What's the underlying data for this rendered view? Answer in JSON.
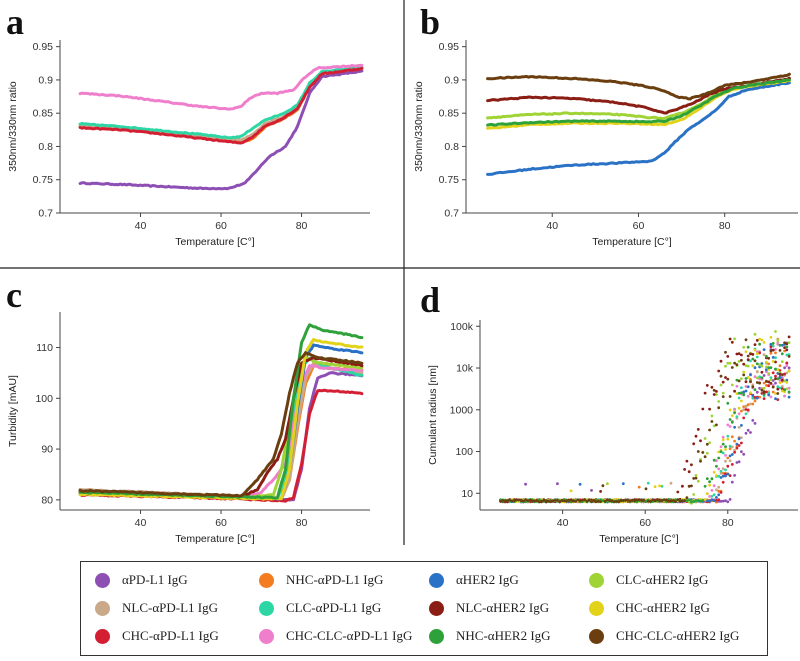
{
  "colors": {
    "apdl1": "#8e4fb5",
    "nhc_apdl1": "#f47c20",
    "ahER2": "#2a72c6",
    "clc_aher2": "#a0d436",
    "nlc_apdl1": "#c9a988",
    "clc_apdl1": "#2fd6a5",
    "nlc_aher2": "#8a1d14",
    "chc_aher2": "#e3d21a",
    "chc_apdl1": "#d41f33",
    "chc_clc_apdl1": "#ef7fcc",
    "nhc_aher2": "#2ea13a",
    "chc_clc_aher2": "#6b3e0f"
  },
  "legend": [
    {
      "label": "αPD-L1 IgG",
      "color_key": "apdl1"
    },
    {
      "label": "NHC-αPD-L1 IgG",
      "color_key": "nhc_apdl1"
    },
    {
      "label": "αHER2 IgG",
      "color_key": "ahER2"
    },
    {
      "label": "CLC-αHER2 IgG",
      "color_key": "clc_aher2"
    },
    {
      "label": "NLC-αPD-L1 IgG",
      "color_key": "nlc_apdl1"
    },
    {
      "label": "CLC-αPD-L1 IgG",
      "color_key": "clc_apdl1"
    },
    {
      "label": "NLC-αHER2 IgG",
      "color_key": "nlc_aher2"
    },
    {
      "label": "CHC-αHER2 IgG",
      "color_key": "chc_aher2"
    },
    {
      "label": "CHC-αPD-L1 IgG",
      "color_key": "chc_apdl1"
    },
    {
      "label": "CHC-CLC-αPD-L1 IgG",
      "color_key": "chc_clc_apdl1"
    },
    {
      "label": "NHC-αHER2 IgG",
      "color_key": "nhc_aher2"
    },
    {
      "label": "CHC-CLC-αHER2 IgG",
      "color_key": "chc_clc_aher2"
    }
  ],
  "chart_data": [
    {
      "panel": "a",
      "type": "line",
      "xlabel": "Temperature [C°]",
      "ylabel": "350nm/330nm ratio",
      "xlim": [
        20,
        97
      ],
      "ylim": [
        0.7,
        0.96
      ],
      "xticks": [
        "40",
        "60",
        "80"
      ],
      "yticks": [
        "0.7",
        "0.75",
        "0.8",
        "0.85",
        "0.9",
        "0.95"
      ],
      "series": [
        {
          "name": "αPD-L1 IgG",
          "color_key": "apdl1",
          "x": [
            25,
            35,
            45,
            55,
            62,
            66,
            69,
            72,
            76,
            79,
            82,
            85,
            95
          ],
          "y": [
            0.745,
            0.743,
            0.74,
            0.737,
            0.737,
            0.745,
            0.765,
            0.785,
            0.8,
            0.83,
            0.88,
            0.905,
            0.913
          ]
        },
        {
          "name": "NHC-αPD-L1 IgG",
          "color_key": "nhc_apdl1",
          "x": [
            25,
            35,
            45,
            55,
            62,
            65,
            68,
            71,
            75,
            79,
            82,
            85,
            95
          ],
          "y": [
            0.829,
            0.826,
            0.82,
            0.813,
            0.808,
            0.806,
            0.812,
            0.83,
            0.84,
            0.855,
            0.89,
            0.91,
            0.918
          ]
        },
        {
          "name": "NLC-αPD-L1 IgG",
          "color_key": "nlc_apdl1",
          "x": [
            25,
            35,
            45,
            55,
            62,
            65,
            68,
            71,
            75,
            79,
            82,
            85,
            95
          ],
          "y": [
            0.832,
            0.828,
            0.823,
            0.816,
            0.811,
            0.81,
            0.818,
            0.835,
            0.843,
            0.858,
            0.892,
            0.911,
            0.918
          ]
        },
        {
          "name": "CLC-αPD-L1 IgG",
          "color_key": "clc_apdl1",
          "x": [
            25,
            35,
            45,
            55,
            62,
            65,
            68,
            71,
            75,
            79,
            82,
            85,
            95
          ],
          "y": [
            0.834,
            0.83,
            0.824,
            0.818,
            0.813,
            0.815,
            0.828,
            0.84,
            0.848,
            0.862,
            0.895,
            0.912,
            0.919
          ]
        },
        {
          "name": "CHC-αPD-L1 IgG",
          "color_key": "chc_apdl1",
          "x": [
            25,
            35,
            45,
            55,
            62,
            65,
            68,
            71,
            75,
            79,
            82,
            85,
            95
          ],
          "y": [
            0.828,
            0.825,
            0.819,
            0.812,
            0.807,
            0.805,
            0.815,
            0.831,
            0.841,
            0.857,
            0.889,
            0.909,
            0.917
          ]
        },
        {
          "name": "CHC-CLC-αPD-L1 IgG",
          "color_key": "chc_clc_apdl1",
          "x": [
            25,
            35,
            45,
            55,
            62,
            65,
            67,
            70,
            74,
            78,
            81,
            84,
            95
          ],
          "y": [
            0.88,
            0.876,
            0.868,
            0.86,
            0.856,
            0.86,
            0.872,
            0.88,
            0.88,
            0.885,
            0.905,
            0.918,
            0.922
          ]
        }
      ]
    },
    {
      "panel": "b",
      "type": "line",
      "xlabel": "Temperature [C°]",
      "ylabel": "350nm/330nm ratio",
      "xlim": [
        20,
        97
      ],
      "ylim": [
        0.7,
        0.96
      ],
      "xticks": [
        "40",
        "60",
        "80"
      ],
      "yticks": [
        "0.7",
        "0.75",
        "0.8",
        "0.85",
        "0.9",
        "0.95"
      ],
      "series": [
        {
          "name": "αHER2 IgG",
          "color_key": "ahER2",
          "x": [
            25,
            35,
            45,
            55,
            63,
            66,
            69,
            72,
            75,
            78,
            81,
            85,
            95
          ],
          "y": [
            0.758,
            0.766,
            0.772,
            0.775,
            0.778,
            0.79,
            0.81,
            0.828,
            0.84,
            0.855,
            0.875,
            0.885,
            0.896
          ]
        },
        {
          "name": "CLC-αHER2 IgG",
          "color_key": "clc_aher2",
          "x": [
            25,
            35,
            45,
            55,
            62,
            66,
            70,
            74,
            78,
            82,
            86,
            95
          ],
          "y": [
            0.843,
            0.848,
            0.85,
            0.848,
            0.844,
            0.842,
            0.85,
            0.862,
            0.878,
            0.888,
            0.892,
            0.9
          ]
        },
        {
          "name": "NLC-αHER2 IgG",
          "color_key": "nlc_aher2",
          "x": [
            25,
            35,
            45,
            55,
            62,
            66,
            69,
            73,
            77,
            81,
            86,
            95
          ],
          "y": [
            0.869,
            0.874,
            0.872,
            0.866,
            0.858,
            0.85,
            0.856,
            0.866,
            0.88,
            0.888,
            0.892,
            0.902
          ]
        },
        {
          "name": "CHC-αHER2 IgG",
          "color_key": "chc_aher2",
          "x": [
            25,
            35,
            45,
            55,
            62,
            66,
            70,
            74,
            78,
            82,
            86,
            95
          ],
          "y": [
            0.827,
            0.833,
            0.835,
            0.835,
            0.834,
            0.833,
            0.84,
            0.856,
            0.874,
            0.886,
            0.891,
            0.899
          ]
        },
        {
          "name": "NHC-αHER2 IgG",
          "color_key": "nhc_aher2",
          "x": [
            25,
            35,
            45,
            55,
            62,
            66,
            70,
            74,
            78,
            82,
            86,
            95
          ],
          "y": [
            0.832,
            0.836,
            0.838,
            0.838,
            0.837,
            0.838,
            0.846,
            0.86,
            0.876,
            0.887,
            0.892,
            0.9
          ]
        },
        {
          "name": "CHC-CLC-αHER2 IgG",
          "color_key": "chc_clc_aher2",
          "x": [
            25,
            35,
            45,
            55,
            62,
            66,
            69,
            72,
            76,
            80,
            85,
            95
          ],
          "y": [
            0.902,
            0.905,
            0.902,
            0.897,
            0.89,
            0.884,
            0.874,
            0.872,
            0.88,
            0.892,
            0.896,
            0.908
          ]
        }
      ]
    },
    {
      "panel": "c",
      "type": "line",
      "xlabel": "Temperature [C°]",
      "ylabel": "Turbidity [mAU]",
      "xlim": [
        20,
        97
      ],
      "ylim": [
        78,
        117
      ],
      "xticks": [
        "40",
        "60",
        "80"
      ],
      "yticks": [
        "80",
        "90",
        "100",
        "110"
      ],
      "series": [
        {
          "name": "αPD-L1 IgG",
          "color_key": "apdl1",
          "x": [
            25,
            45,
            65,
            76,
            78,
            80,
            82,
            84,
            87,
            95
          ],
          "y": [
            81.2,
            80.8,
            80.4,
            80.0,
            80.0,
            86,
            98,
            104,
            105.0,
            104.5
          ]
        },
        {
          "name": "NHC-αPD-L1 IgG",
          "color_key": "nhc_apdl1",
          "x": [
            25,
            45,
            65,
            75,
            77,
            79,
            81,
            83,
            86,
            95
          ],
          "y": [
            81.8,
            81.2,
            80.6,
            80.2,
            84,
            94,
            103,
            106.5,
            106.0,
            105.5
          ]
        },
        {
          "name": "NLC-αPD-L1 IgG",
          "color_key": "nlc_apdl1",
          "x": [
            25,
            45,
            65,
            75,
            77,
            79,
            81,
            83,
            86,
            95
          ],
          "y": [
            82.0,
            81.4,
            80.7,
            80.3,
            84,
            95,
            104,
            107.0,
            106.0,
            105.0
          ]
        },
        {
          "name": "CLC-αPD-L1 IgG",
          "color_key": "clc_apdl1",
          "x": [
            25,
            45,
            65,
            74,
            76,
            78,
            80,
            82,
            85,
            95
          ],
          "y": [
            81.5,
            81.0,
            80.5,
            80.3,
            84,
            96,
            106,
            108.0,
            106.5,
            104.5
          ]
        },
        {
          "name": "CHC-αPD-L1 IgG",
          "color_key": "chc_apdl1",
          "x": [
            25,
            45,
            65,
            76,
            78,
            80,
            82,
            84,
            87,
            95
          ],
          "y": [
            81.0,
            80.6,
            80.2,
            79.8,
            80.5,
            87,
            97,
            101.5,
            101.5,
            101.0
          ]
        },
        {
          "name": "CHC-CLC-αPD-L1 IgG",
          "color_key": "chc_clc_apdl1",
          "x": [
            25,
            45,
            65,
            70,
            73,
            76,
            78,
            80,
            82,
            85,
            95
          ],
          "y": [
            81.3,
            80.9,
            80.5,
            81.5,
            84,
            87,
            95,
            103,
            106.5,
            106.0,
            105.5
          ]
        },
        {
          "name": "αHER2 IgG",
          "color_key": "ahER2",
          "x": [
            25,
            45,
            65,
            75,
            77,
            79,
            81,
            83,
            86,
            95
          ],
          "y": [
            81.4,
            80.9,
            80.4,
            80.2,
            86,
            98,
            108,
            110.5,
            110.0,
            109.0
          ]
        },
        {
          "name": "CLC-αHER2 IgG",
          "color_key": "clc_aher2",
          "x": [
            25,
            45,
            65,
            73,
            75,
            77,
            79,
            81,
            84,
            95
          ],
          "y": [
            81.2,
            80.8,
            80.4,
            81,
            86,
            95,
            104,
            108,
            107.0,
            106.0
          ]
        },
        {
          "name": "NLC-αHER2 IgG",
          "color_key": "nlc_aher2",
          "x": [
            25,
            45,
            65,
            69,
            72,
            74,
            76,
            78,
            80,
            83,
            95
          ],
          "y": [
            81.6,
            81.1,
            80.6,
            82,
            86,
            88,
            92,
            100,
            107,
            108.0,
            106.5
          ]
        },
        {
          "name": "CHC-αHER2 IgG",
          "color_key": "chc_aher2",
          "x": [
            25,
            45,
            65,
            75,
            77,
            79,
            81,
            83,
            86,
            95
          ],
          "y": [
            81.1,
            80.7,
            80.3,
            80.2,
            86,
            99,
            109,
            111.5,
            111.0,
            110.0
          ]
        },
        {
          "name": "NHC-αHER2 IgG",
          "color_key": "nhc_aher2",
          "x": [
            25,
            45,
            65,
            74,
            76,
            78,
            80,
            82,
            85,
            95
          ],
          "y": [
            81.5,
            81.0,
            80.6,
            80.4,
            86,
            100,
            111,
            114.5,
            113.5,
            112.0
          ]
        },
        {
          "name": "CHC-CLC-αHER2 IgG",
          "color_key": "chc_clc_aher2",
          "x": [
            25,
            45,
            65,
            68,
            71,
            73,
            75,
            77,
            79,
            81,
            84,
            95
          ],
          "y": [
            81.8,
            81.3,
            80.8,
            83,
            86,
            88,
            93,
            101,
            107,
            109,
            108.0,
            107.0
          ]
        }
      ]
    },
    {
      "panel": "d",
      "type": "scatter",
      "xlabel": "Temperature [C°]",
      "ylabel": "Cumulant radius [nm]",
      "xlim": [
        20,
        97
      ],
      "ylim_log10": [
        0.6,
        5.15
      ],
      "xticks": [
        "40",
        "60",
        "80"
      ],
      "yticks": [
        "10",
        "100",
        "1000",
        "10k",
        "100k"
      ],
      "series": [
        {
          "name": "αPD-L1 IgG",
          "color_key": "apdl1",
          "onset": 80,
          "plateau": 8000
        },
        {
          "name": "NHC-αPD-L1 IgG",
          "color_key": "nhc_apdl1",
          "onset": 77,
          "plateau": 10000
        },
        {
          "name": "NLC-αPD-L1 IgG",
          "color_key": "nlc_apdl1",
          "onset": 77,
          "plateau": 9000
        },
        {
          "name": "CLC-αPD-L1 IgG",
          "color_key": "clc_apdl1",
          "onset": 76,
          "plateau": 8000
        },
        {
          "name": "CHC-αPD-L1 IgG",
          "color_key": "chc_apdl1",
          "onset": 78,
          "plateau": 7000
        },
        {
          "name": "CHC-CLC-αPD-L1 IgG",
          "color_key": "chc_clc_apdl1",
          "onset": 75,
          "plateau": 9000
        },
        {
          "name": "αHER2 IgG",
          "color_key": "ahER2",
          "onset": 77,
          "plateau": 8000
        },
        {
          "name": "CLC-αHER2 IgG",
          "color_key": "clc_aher2",
          "onset": 71,
          "plateau": 15000
        },
        {
          "name": "NLC-αHER2 IgG",
          "color_key": "nlc_aher2",
          "onset": 68,
          "plateau": 12000
        },
        {
          "name": "CHC-αHER2 IgG",
          "color_key": "chc_aher2",
          "onset": 75,
          "plateau": 12000
        },
        {
          "name": "NHC-αHER2 IgG",
          "color_key": "nhc_aher2",
          "onset": 74,
          "plateau": 10000
        },
        {
          "name": "CHC-CLC-αHER2 IgG",
          "color_key": "chc_clc_aher2",
          "onset": 70,
          "plateau": 10000
        }
      ]
    }
  ]
}
